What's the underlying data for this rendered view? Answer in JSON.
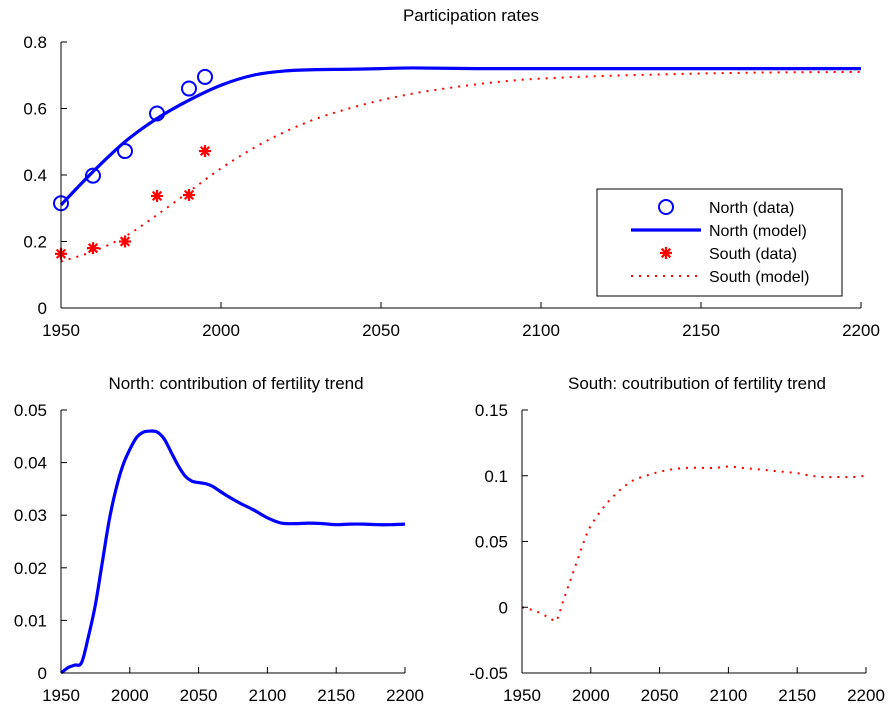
{
  "chart_data": [
    {
      "type": "line",
      "title": "Participation rates",
      "xlabel": "",
      "ylabel": "",
      "xlim": [
        1950,
        2200
      ],
      "ylim": [
        0,
        0.8
      ],
      "xticks": [
        "1950",
        "2000",
        "2050",
        "2100",
        "2150",
        "2200"
      ],
      "yticks": [
        "0",
        "0.2",
        "0.4",
        "0.6",
        "0.8"
      ],
      "legend_position": "lower-right",
      "series": [
        {
          "name": "North (data)",
          "style": "scatter-circle",
          "color": "#0000ff",
          "x": [
            1950,
            1960,
            1970,
            1980,
            1990,
            1995
          ],
          "y": [
            0.315,
            0.398,
            0.472,
            0.585,
            0.66,
            0.695
          ]
        },
        {
          "name": "North (model)",
          "style": "solid",
          "color": "#0000ff",
          "x": [
            1950,
            1960,
            1970,
            1980,
            1990,
            2000,
            2010,
            2020,
            2030,
            2040,
            2050,
            2060,
            2080,
            2100,
            2150,
            2200
          ],
          "y": [
            0.31,
            0.41,
            0.5,
            0.57,
            0.625,
            0.67,
            0.7,
            0.713,
            0.717,
            0.718,
            0.72,
            0.722,
            0.72,
            0.72,
            0.72,
            0.72
          ]
        },
        {
          "name": "South (data)",
          "style": "scatter-star",
          "color": "#ff0000",
          "x": [
            1950,
            1960,
            1970,
            1980,
            1990,
            1995
          ],
          "y": [
            0.163,
            0.18,
            0.2,
            0.337,
            0.34,
            0.472
          ]
        },
        {
          "name": "South (model)",
          "style": "dotted",
          "color": "#ff0000",
          "x": [
            1950,
            1960,
            1970,
            1980,
            1990,
            2000,
            2010,
            2020,
            2030,
            2040,
            2050,
            2060,
            2070,
            2080,
            2090,
            2100,
            2120,
            2140,
            2160,
            2180,
            2200
          ],
          "y": [
            0.14,
            0.17,
            0.215,
            0.28,
            0.35,
            0.42,
            0.48,
            0.53,
            0.57,
            0.6,
            0.625,
            0.645,
            0.66,
            0.673,
            0.683,
            0.69,
            0.698,
            0.703,
            0.707,
            0.709,
            0.71
          ]
        }
      ]
    },
    {
      "type": "line",
      "title": "North: contribution of fertility trend",
      "xlabel": "",
      "ylabel": "",
      "xlim": [
        1950,
        2200
      ],
      "ylim": [
        0,
        0.05
      ],
      "xticks": [
        "1950",
        "2000",
        "2050",
        "2100",
        "2150",
        "2200"
      ],
      "yticks": [
        "0",
        "0.01",
        "0.02",
        "0.03",
        "0.04",
        "0.05"
      ],
      "series": [
        {
          "style": "solid",
          "color": "#0000ff",
          "x": [
            1950,
            1955,
            1960,
            1965,
            1970,
            1975,
            1980,
            1985,
            1990,
            1995,
            2000,
            2005,
            2010,
            2015,
            2020,
            2025,
            2030,
            2035,
            2040,
            2045,
            2050,
            2055,
            2060,
            2070,
            2080,
            2090,
            2100,
            2110,
            2120,
            2130,
            2140,
            2150,
            2160,
            2170,
            2180,
            2190,
            2200
          ],
          "y": [
            0.0,
            0.001,
            0.0015,
            0.002,
            0.007,
            0.013,
            0.021,
            0.029,
            0.035,
            0.0395,
            0.0425,
            0.0448,
            0.0458,
            0.046,
            0.0458,
            0.0445,
            0.042,
            0.0395,
            0.0375,
            0.0365,
            0.0362,
            0.036,
            0.0355,
            0.0338,
            0.0323,
            0.031,
            0.0295,
            0.0285,
            0.0284,
            0.0285,
            0.0284,
            0.0282,
            0.0283,
            0.0283,
            0.0282,
            0.0282,
            0.0283
          ]
        }
      ]
    },
    {
      "type": "line",
      "title": "South: coutribution of fertility trend",
      "xlabel": "",
      "ylabel": "",
      "xlim": [
        1950,
        2200
      ],
      "ylim": [
        -0.05,
        0.15
      ],
      "xticks": [
        "1950",
        "2000",
        "2050",
        "2100",
        "2150",
        "2200"
      ],
      "yticks": [
        "-0.05",
        "0",
        "0.05",
        "0.1",
        "0.15"
      ],
      "series": [
        {
          "style": "dotted",
          "color": "#ff0000",
          "x": [
            1950,
            1960,
            1970,
            1975,
            1980,
            1985,
            1990,
            1995,
            2000,
            2010,
            2020,
            2030,
            2040,
            2050,
            2060,
            2070,
            2080,
            2090,
            2100,
            2110,
            2120,
            2130,
            2140,
            2150,
            2160,
            2170,
            2180,
            2190,
            2200
          ],
          "y": [
            0.0,
            -0.003,
            -0.008,
            -0.01,
            0.005,
            0.02,
            0.035,
            0.05,
            0.062,
            0.077,
            0.088,
            0.096,
            0.1,
            0.103,
            0.105,
            0.106,
            0.106,
            0.106,
            0.107,
            0.106,
            0.105,
            0.104,
            0.103,
            0.102,
            0.1,
            0.099,
            0.099,
            0.099,
            0.1
          ]
        }
      ]
    }
  ]
}
